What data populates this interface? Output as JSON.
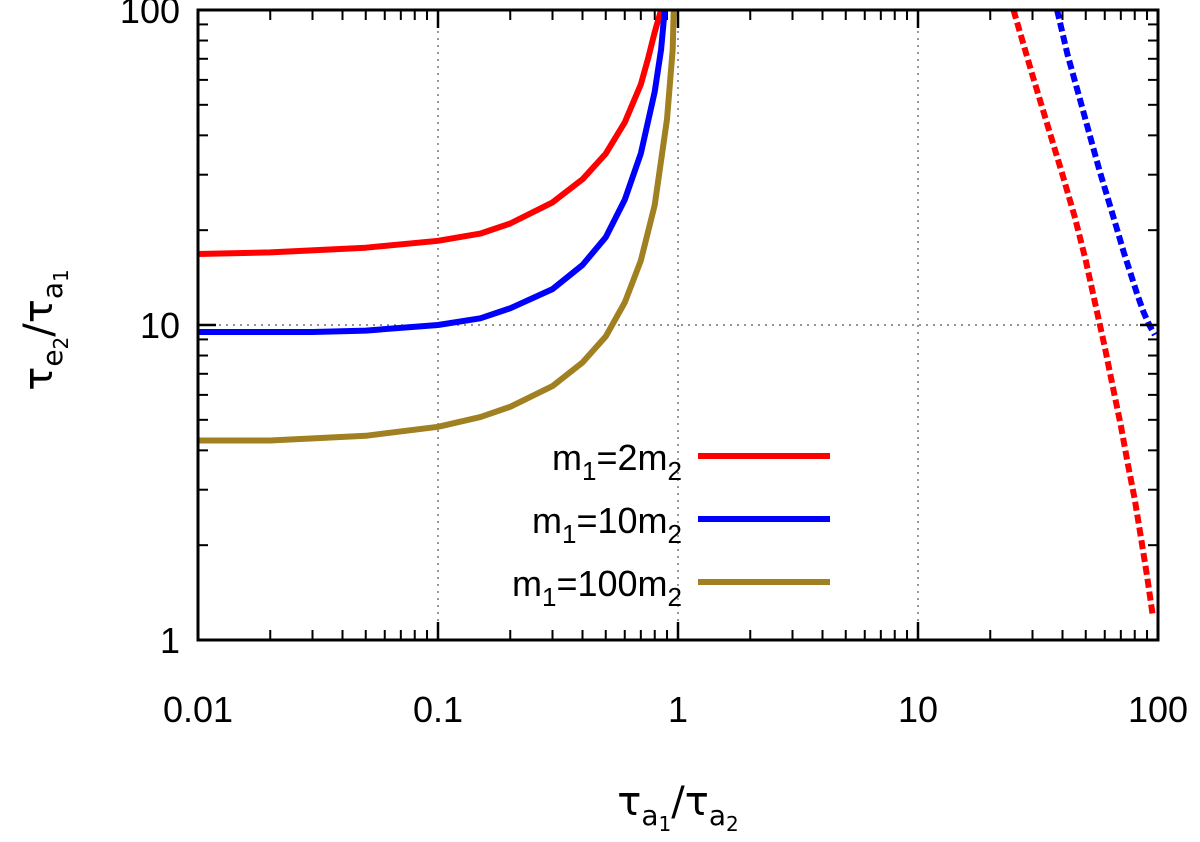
{
  "chart_data": {
    "type": "line",
    "xscale": "log",
    "yscale": "log",
    "xlim": [
      0.01,
      100
    ],
    "ylim": [
      1,
      100
    ],
    "grid": true,
    "legend_position": "bottom-center",
    "x_ticks": [
      {
        "value": 0.01,
        "label": "0.01"
      },
      {
        "value": 0.1,
        "label": "0.1"
      },
      {
        "value": 1,
        "label": "1"
      },
      {
        "value": 10,
        "label": "10"
      },
      {
        "value": 100,
        "label": "100"
      }
    ],
    "y_ticks": [
      {
        "value": 1,
        "label": "1"
      },
      {
        "value": 10,
        "label": "10"
      },
      {
        "value": 100,
        "label": "100"
      }
    ],
    "xlabel": {
      "main": "τ",
      "sub1": "a",
      "sub2": "1",
      "slash": "/",
      "main2": "τ",
      "sub3": "a",
      "sub4": "2"
    },
    "ylabel": {
      "main": "τ",
      "sub1": "e",
      "sub2": "2",
      "slash": "/",
      "main2": "τ",
      "sub3": "a",
      "sub4": "1"
    },
    "series": [
      {
        "name": "m1=2m2",
        "legend": {
          "m": "m",
          "s1": "1",
          "eq": "=2m",
          "s2": "2"
        },
        "color": "#ff0000",
        "style": "solid",
        "x": [
          0.01,
          0.02,
          0.05,
          0.1,
          0.15,
          0.2,
          0.3,
          0.4,
          0.5,
          0.6,
          0.7,
          0.75,
          0.8,
          0.85
        ],
        "y": [
          16.8,
          17.0,
          17.6,
          18.5,
          19.5,
          21.0,
          24.5,
          29.0,
          35.0,
          44.0,
          58.0,
          70.0,
          85.0,
          100.0
        ]
      },
      {
        "name": "m1=10m2",
        "legend": {
          "m": "m",
          "s1": "1",
          "eq": "=10m",
          "s2": "2"
        },
        "color": "#0000ff",
        "style": "solid",
        "x": [
          0.01,
          0.03,
          0.05,
          0.1,
          0.15,
          0.2,
          0.3,
          0.4,
          0.5,
          0.6,
          0.7,
          0.8,
          0.85,
          0.88
        ],
        "y": [
          9.5,
          9.5,
          9.6,
          10.0,
          10.5,
          11.3,
          13.0,
          15.5,
          19.0,
          25.0,
          35.0,
          55.0,
          75.0,
          100.0
        ]
      },
      {
        "name": "m1=100m2",
        "legend": {
          "m": "m",
          "s1": "1",
          "eq": "=100m",
          "s2": "2"
        },
        "color": "#a08020",
        "style": "solid",
        "x": [
          0.01,
          0.02,
          0.05,
          0.1,
          0.15,
          0.2,
          0.3,
          0.4,
          0.5,
          0.6,
          0.7,
          0.8,
          0.9,
          0.95,
          0.96
        ],
        "y": [
          4.3,
          4.3,
          4.45,
          4.75,
          5.1,
          5.5,
          6.4,
          7.6,
          9.2,
          11.8,
          16.0,
          24.0,
          45.0,
          75.0,
          100.0
        ]
      },
      {
        "name": "m1=2m2 (dashed)",
        "color": "#ff0000",
        "style": "dashed",
        "x": [
          25,
          30,
          35,
          40,
          45,
          50,
          55,
          60,
          65,
          70,
          75,
          80,
          85,
          90,
          95
        ],
        "y": [
          100,
          62,
          42,
          30,
          22,
          16,
          11.5,
          8.5,
          6.3,
          4.8,
          3.6,
          2.8,
          2.1,
          1.6,
          1.2
        ]
      },
      {
        "name": "m1=10m2 (dashed)",
        "color": "#0000ff",
        "style": "dashed",
        "x": [
          38,
          42,
          47,
          52,
          57,
          62,
          67,
          72,
          77,
          82,
          87,
          92,
          97
        ],
        "y": [
          100,
          72,
          53,
          40,
          31,
          25,
          20.5,
          17,
          14.5,
          12.5,
          11.0,
          10.0,
          9.3
        ]
      }
    ]
  }
}
